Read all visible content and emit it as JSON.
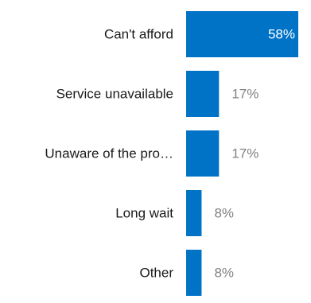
{
  "chart_data": {
    "type": "bar",
    "orientation": "horizontal",
    "categories": [
      "Can't afford",
      "Service unavailable",
      "Unaware of the pro…",
      "Long wait",
      "Other"
    ],
    "values": [
      58,
      17,
      17,
      8,
      8
    ],
    "value_labels": [
      "58%",
      "17%",
      "17%",
      "8%",
      "8%"
    ],
    "unit": "%",
    "xlim": [
      0,
      58
    ],
    "grid": false,
    "legend": "none",
    "bar_color": "#0073c7",
    "label_inside_color": "#ffffff",
    "label_outside_color": "#808080"
  }
}
